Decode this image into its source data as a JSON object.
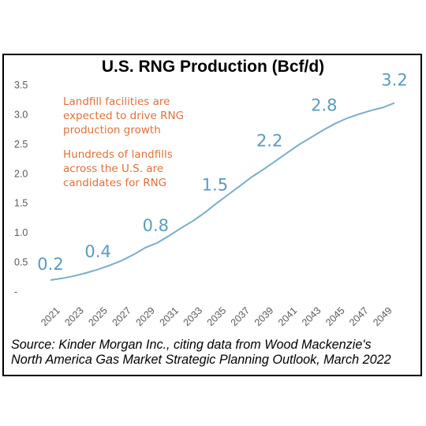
{
  "title": "U.S. RNG Production (Bcf/d)",
  "colors": {
    "line": "#7aaec8",
    "data_label": "#5b9bbd",
    "annotation": "#e0713a",
    "axis_text": "#595959",
    "frame": "#000000"
  },
  "annotations": [
    [
      "Landfill facilities are",
      "expected to drive RNG",
      "production growth"
    ],
    [
      "Hundreds of landfills",
      "across the U.S. are",
      "candidates for RNG"
    ]
  ],
  "source_lines": [
    "Source: Kinder Morgan Inc., citing data from Wood Mackenzie's",
    "North America Gas Market Strategic Planning Outlook, March 2022"
  ],
  "chart_data": {
    "type": "line",
    "title": "U.S. RNG Production (Bcf/d)",
    "xlabel": "",
    "ylabel": "",
    "ylim": [
      0,
      3.5
    ],
    "y_ticks": [
      0,
      0.5,
      1.0,
      1.5,
      2.0,
      2.5,
      3.0,
      3.5
    ],
    "y_tick_labels": [
      "-",
      "0.5",
      "1.0",
      "1.5",
      "2.0",
      "2.5",
      "3.0",
      "3.5"
    ],
    "x_ticks": [
      2021,
      2023,
      2025,
      2027,
      2029,
      2031,
      2033,
      2035,
      2037,
      2039,
      2041,
      2043,
      2045,
      2047,
      2049
    ],
    "grid": false,
    "legend": "none",
    "series": [
      {
        "x": [
          2021,
          2022,
          2023,
          2024,
          2025,
          2026,
          2027,
          2028,
          2029,
          2030,
          2031,
          2032,
          2033,
          2034,
          2035,
          2036,
          2037,
          2038,
          2039,
          2040,
          2041,
          2042,
          2043,
          2044,
          2045,
          2046,
          2047,
          2048,
          2049,
          2050
        ],
        "values": [
          0.2,
          0.23,
          0.27,
          0.32,
          0.38,
          0.45,
          0.53,
          0.63,
          0.75,
          0.83,
          0.95,
          1.08,
          1.2,
          1.34,
          1.5,
          1.65,
          1.8,
          1.95,
          2.08,
          2.22,
          2.36,
          2.5,
          2.62,
          2.74,
          2.85,
          2.94,
          3.01,
          3.07,
          3.12,
          3.2
        ]
      }
    ],
    "data_labels": [
      {
        "x": 2021,
        "y": 0.2,
        "text": "0.2"
      },
      {
        "x": 2025,
        "y": 0.4,
        "text": "0.4"
      },
      {
        "x": 2030,
        "y": 0.8,
        "text": "0.8"
      },
      {
        "x": 2035,
        "y": 1.5,
        "text": "1.5"
      },
      {
        "x": 2040,
        "y": 2.2,
        "text": "2.2"
      },
      {
        "x": 2045,
        "y": 2.8,
        "text": "2.8"
      },
      {
        "x": 2050,
        "y": 3.2,
        "text": "3.2"
      }
    ]
  }
}
